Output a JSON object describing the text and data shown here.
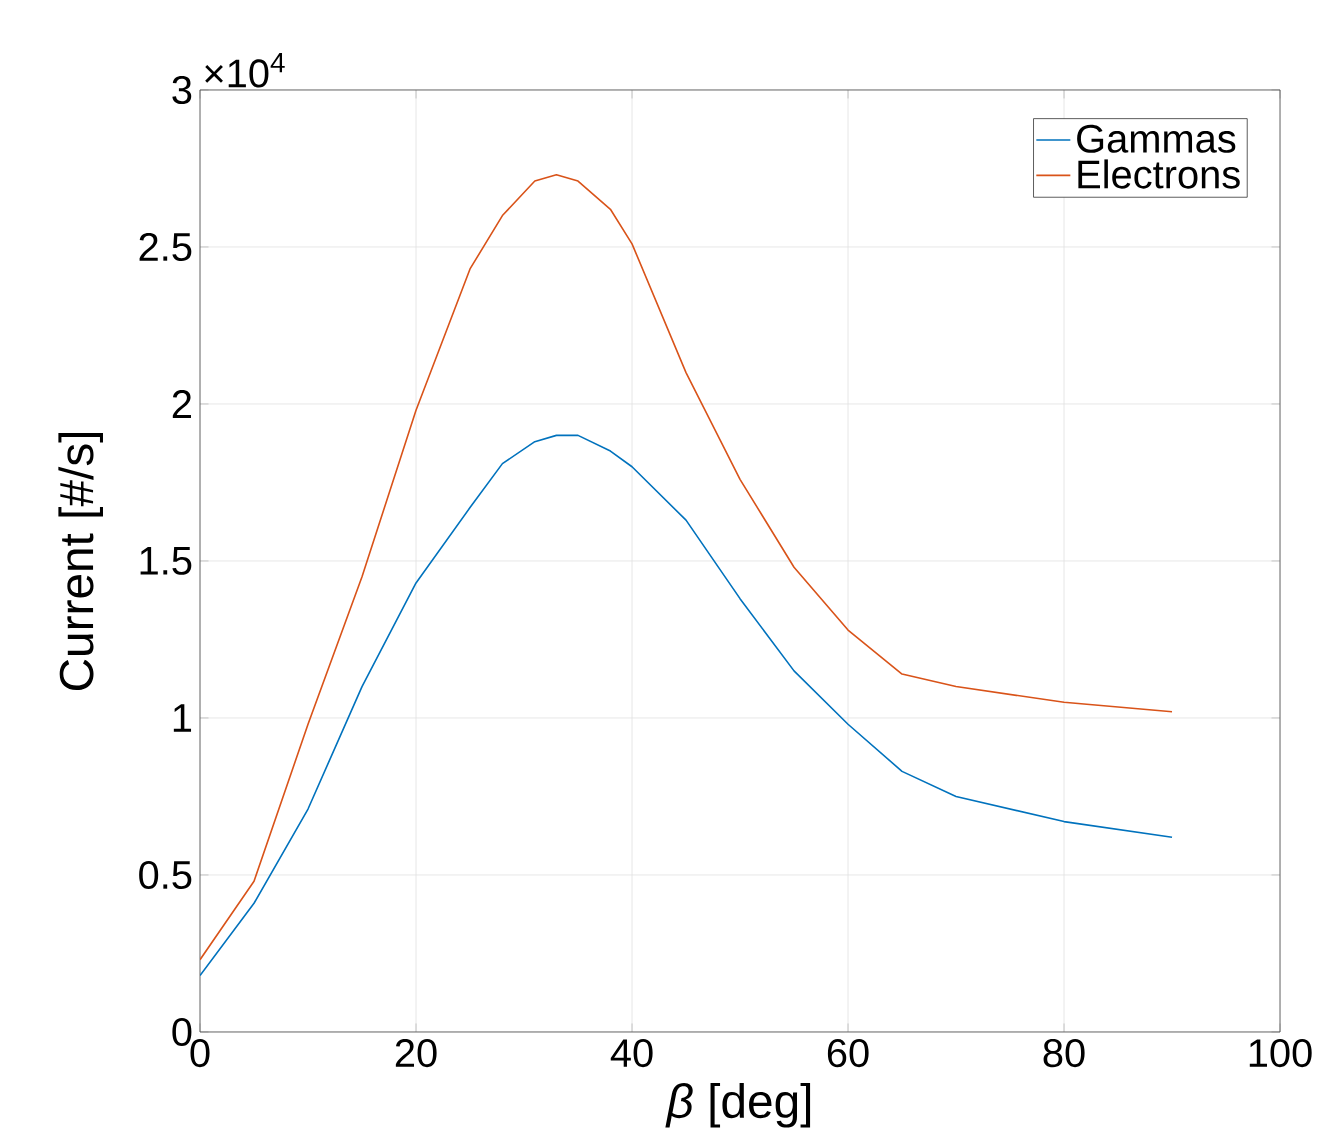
{
  "chart_data": {
    "type": "line",
    "xlabel": "*β* [deg]",
    "ylabel": "Current [#/s]",
    "annotations": [
      "×10$^{4}$"
    ],
    "x": [
      0,
      5,
      10,
      15,
      20,
      25,
      28,
      31,
      33,
      35,
      38,
      40,
      45,
      50,
      55,
      60,
      65,
      70,
      80,
      90
    ],
    "xlim": [
      0,
      100
    ],
    "series": [
      {
        "name": "Gammas",
        "color": "#0072bd",
        "values": [
          0.18,
          0.41,
          0.71,
          1.1,
          1.43,
          1.67,
          1.81,
          1.88,
          1.9,
          1.9,
          1.85,
          1.8,
          1.63,
          1.38,
          1.15,
          0.98,
          0.83,
          0.75,
          0.67,
          0.62
        ]
      },
      {
        "name": "Electrons",
        "color": "#d95319",
        "values": [
          0.23,
          0.48,
          0.98,
          1.45,
          1.98,
          2.43,
          2.6,
          2.71,
          2.73,
          2.71,
          2.62,
          2.51,
          2.1,
          1.76,
          1.48,
          1.28,
          1.14,
          1.1,
          1.05,
          1.02
        ]
      }
    ],
    "ylim": [
      0,
      3
    ],
    "xticks": [
      0,
      20,
      40,
      60,
      80,
      100
    ],
    "yticks": [
      0,
      0.5,
      1,
      1.5,
      2,
      2.5,
      3
    ],
    "grid": true,
    "legend": "top right"
  }
}
